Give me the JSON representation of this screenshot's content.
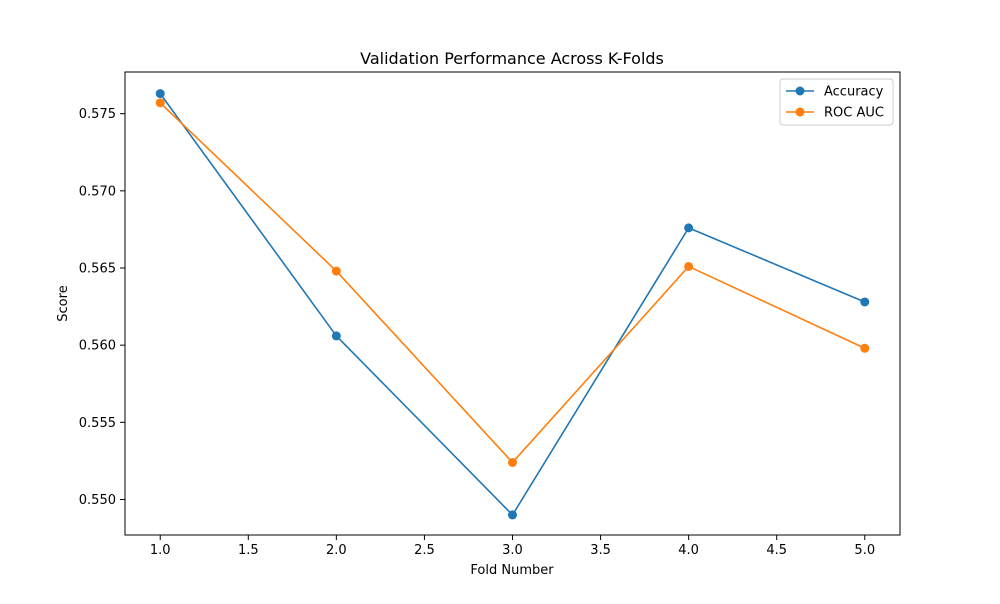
{
  "chart_data": {
    "type": "line",
    "title": "Validation Performance Across K-Folds",
    "xlabel": "Fold Number",
    "ylabel": "Score",
    "x": [
      1,
      2,
      3,
      4,
      5
    ],
    "xlim": [
      0.8,
      5.2
    ],
    "ylim": [
      0.5477,
      0.5777
    ],
    "xticks": [
      1.0,
      1.5,
      2.0,
      2.5,
      3.0,
      3.5,
      4.0,
      4.5,
      5.0
    ],
    "xtick_labels": [
      "1.0",
      "1.5",
      "2.0",
      "2.5",
      "3.0",
      "3.5",
      "4.0",
      "4.5",
      "5.0"
    ],
    "yticks": [
      0.55,
      0.555,
      0.56,
      0.565,
      0.57,
      0.575
    ],
    "ytick_labels": [
      "0.550",
      "0.555",
      "0.560",
      "0.565",
      "0.570",
      "0.575"
    ],
    "grid": false,
    "legend_position": "top-right",
    "series": [
      {
        "name": "Accuracy",
        "color": "#1f77b4",
        "marker": "circle",
        "values": [
          0.5763,
          0.5606,
          0.549,
          0.5676,
          0.5628
        ]
      },
      {
        "name": "ROC AUC",
        "color": "#ff7f0e",
        "marker": "circle",
        "values": [
          0.5757,
          0.5648,
          0.5524,
          0.5651,
          0.5598
        ]
      }
    ]
  }
}
